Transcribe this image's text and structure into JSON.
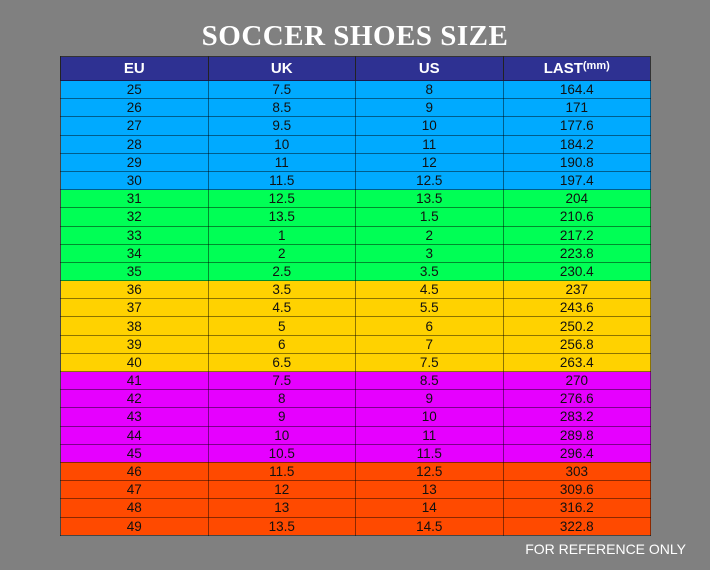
{
  "title": "SOCCER SHOES SIZE",
  "headers": {
    "eu": "EU",
    "uk": "UK",
    "us": "US",
    "last": "LAST",
    "last_unit": "(mm)"
  },
  "group_colors": [
    "#00aaff",
    "#00ff55",
    "#ffd200",
    "#e600ff",
    "#ff4a00"
  ],
  "header_color": "#2e3192",
  "rows": [
    {
      "eu": "25",
      "uk": "7.5",
      "us": "8",
      "last": "164.4",
      "group": 0
    },
    {
      "eu": "26",
      "uk": "8.5",
      "us": "9",
      "last": "171",
      "group": 0
    },
    {
      "eu": "27",
      "uk": "9.5",
      "us": "10",
      "last": "177.6",
      "group": 0
    },
    {
      "eu": "28",
      "uk": "10",
      "us": "11",
      "last": "184.2",
      "group": 0
    },
    {
      "eu": "29",
      "uk": "11",
      "us": "12",
      "last": "190.8",
      "group": 0
    },
    {
      "eu": "30",
      "uk": "11.5",
      "us": "12.5",
      "last": "197.4",
      "group": 0
    },
    {
      "eu": "31",
      "uk": "12.5",
      "us": "13.5",
      "last": "204",
      "group": 1
    },
    {
      "eu": "32",
      "uk": "13.5",
      "us": "1.5",
      "last": "210.6",
      "group": 1
    },
    {
      "eu": "33",
      "uk": "1",
      "us": "2",
      "last": "217.2",
      "group": 1
    },
    {
      "eu": "34",
      "uk": "2",
      "us": "3",
      "last": "223.8",
      "group": 1
    },
    {
      "eu": "35",
      "uk": "2.5",
      "us": "3.5",
      "last": "230.4",
      "group": 1
    },
    {
      "eu": "36",
      "uk": "3.5",
      "us": "4.5",
      "last": "237",
      "group": 2
    },
    {
      "eu": "37",
      "uk": "4.5",
      "us": "5.5",
      "last": "243.6",
      "group": 2
    },
    {
      "eu": "38",
      "uk": "5",
      "us": "6",
      "last": "250.2",
      "group": 2
    },
    {
      "eu": "39",
      "uk": "6",
      "us": "7",
      "last": "256.8",
      "group": 2
    },
    {
      "eu": "40",
      "uk": "6.5",
      "us": "7.5",
      "last": "263.4",
      "group": 2
    },
    {
      "eu": "41",
      "uk": "7.5",
      "us": "8.5",
      "last": "270",
      "group": 3
    },
    {
      "eu": "42",
      "uk": "8",
      "us": "9",
      "last": "276.6",
      "group": 3
    },
    {
      "eu": "43",
      "uk": "9",
      "us": "10",
      "last": "283.2",
      "group": 3
    },
    {
      "eu": "44",
      "uk": "10",
      "us": "11",
      "last": "289.8",
      "group": 3
    },
    {
      "eu": "45",
      "uk": "10.5",
      "us": "11.5",
      "last": "296.4",
      "group": 3
    },
    {
      "eu": "46",
      "uk": "11.5",
      "us": "12.5",
      "last": "303",
      "group": 4
    },
    {
      "eu": "47",
      "uk": "12",
      "us": "13",
      "last": "309.6",
      "group": 4
    },
    {
      "eu": "48",
      "uk": "13",
      "us": "14",
      "last": "316.2",
      "group": 4
    },
    {
      "eu": "49",
      "uk": "13.5",
      "us": "14.5",
      "last": "322.8",
      "group": 4
    }
  ],
  "footer": "FOR REFERENCE ONLY"
}
